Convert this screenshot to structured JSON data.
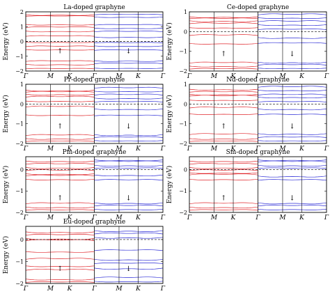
{
  "figure": {
    "ylabel": "Energy (eV)",
    "colors": {
      "spin_up": "#e0252a",
      "spin_down": "#2a2ad6",
      "frame": "#000000",
      "fermi": "#000000"
    },
    "panel_order": [
      "La",
      "Ce",
      "Pr",
      "Nd",
      "Pm",
      "Sm",
      "Eu"
    ]
  },
  "chart_data": [
    {
      "type": "line",
      "title": "La-doped graphyne",
      "ylabel": "Energy (eV)",
      "xticks": [
        "Γ",
        "M",
        "K",
        "Γ"
      ],
      "yticks": [
        "−2",
        "−1",
        "0",
        "1",
        "2"
      ],
      "ylim": [
        -2,
        2
      ],
      "fermi_level": 0,
      "grid": false,
      "series": [
        {
          "spin": "up",
          "color": "#e0252a",
          "arrow": "↑",
          "bands_at_gamma": [
            -1.85,
            -1.55,
            -1.35,
            -0.55,
            -0.35,
            -0.05,
            0.35,
            0.7,
            0.95,
            1.15,
            1.7,
            1.8
          ]
        },
        {
          "spin": "down",
          "color": "#2a2ad6",
          "arrow": "↓",
          "bands_at_gamma": [
            -1.8,
            -1.5,
            -1.3,
            -0.6,
            -0.3,
            -0.1,
            0.3,
            0.65,
            0.9,
            1.1,
            1.65,
            1.8
          ]
        }
      ]
    },
    {
      "type": "line",
      "title": "Ce-doped graphyne",
      "ylabel": "Energy (eV)",
      "xticks": [
        "Γ",
        "M",
        "K",
        "Γ"
      ],
      "yticks": [
        "−2",
        "−1",
        "0",
        "1"
      ],
      "ylim": [
        -2,
        1
      ],
      "fermi_level": 0,
      "grid": false,
      "series": [
        {
          "spin": "up",
          "color": "#e0252a",
          "arrow": "↑",
          "bands_at_gamma": [
            -1.9,
            -1.75,
            -1.6,
            -0.6,
            -0.2,
            0.2,
            0.4,
            0.55,
            0.65,
            0.75
          ]
        },
        {
          "spin": "down",
          "color": "#2a2ad6",
          "arrow": "↓",
          "bands_at_gamma": [
            -1.85,
            -1.7,
            -1.55,
            -0.6,
            -0.3,
            0.1,
            0.35,
            0.5,
            0.7,
            0.85
          ]
        }
      ]
    },
    {
      "type": "line",
      "title": "Pr-doped graphyne",
      "ylabel": "Energy (eV)",
      "xticks": [
        "Γ",
        "M",
        "K",
        "Γ"
      ],
      "yticks": [
        "−2",
        "−1",
        "0",
        "1"
      ],
      "ylim": [
        -2,
        1
      ],
      "fermi_level": 0,
      "grid": false,
      "series": [
        {
          "spin": "up",
          "color": "#e0252a",
          "arrow": "↑",
          "bands_at_gamma": [
            -1.9,
            -1.75,
            -1.6,
            -0.55,
            -0.15,
            0.15,
            0.35,
            0.5,
            0.6,
            0.7
          ]
        },
        {
          "spin": "down",
          "color": "#2a2ad6",
          "arrow": "↓",
          "bands_at_gamma": [
            -1.85,
            -1.7,
            -1.55,
            -0.6,
            -0.25,
            0.1,
            0.3,
            0.45,
            0.65,
            0.8
          ]
        }
      ]
    },
    {
      "type": "line",
      "title": "Nd-doped graphyne",
      "ylabel": "Energy (eV)",
      "xticks": [
        "Γ",
        "M",
        "K",
        "Γ"
      ],
      "yticks": [
        "−2",
        "−1",
        "0",
        "1"
      ],
      "ylim": [
        -2,
        1
      ],
      "fermi_level": 0,
      "grid": false,
      "series": [
        {
          "spin": "up",
          "color": "#e0252a",
          "arrow": "↑",
          "bands_at_gamma": [
            -1.9,
            -1.75,
            -1.55,
            -0.5,
            -0.2,
            0.2,
            0.4,
            0.5,
            0.6,
            0.75
          ]
        },
        {
          "spin": "down",
          "color": "#2a2ad6",
          "arrow": "↓",
          "bands_at_gamma": [
            -1.85,
            -1.7,
            -1.5,
            -0.55,
            -0.25,
            0.1,
            0.35,
            0.45,
            0.7,
            0.85
          ]
        }
      ]
    },
    {
      "type": "line",
      "title": "Pm-doped graphyne",
      "ylabel": "Energy (eV)",
      "xticks": [
        "Γ",
        "M",
        "K",
        "Γ"
      ],
      "yticks": [
        "−2",
        "−1",
        "0"
      ],
      "ylim": [
        -2,
        0.6
      ],
      "fermi_level": 0,
      "grid": false,
      "series": [
        {
          "spin": "up",
          "color": "#e0252a",
          "arrow": "↑",
          "bands_at_gamma": [
            -1.9,
            -1.75,
            -1.6,
            -0.45,
            -0.3,
            -0.2,
            -0.05,
            0.1,
            0.25,
            0.4
          ]
        },
        {
          "spin": "down",
          "color": "#2a2ad6",
          "arrow": "↓",
          "bands_at_gamma": [
            -1.85,
            -1.7,
            -1.55,
            -0.5,
            -0.25,
            0.05,
            0.2,
            0.35,
            0.45
          ]
        }
      ]
    },
    {
      "type": "line",
      "title": "Sm-doped graphyne",
      "ylabel": "Energy (eV)",
      "xticks": [
        "Γ",
        "M",
        "K",
        "Γ"
      ],
      "yticks": [
        "−2",
        "−1",
        "0"
      ],
      "ylim": [
        -2,
        0.6
      ],
      "fermi_level": 0,
      "grid": false,
      "series": [
        {
          "spin": "up",
          "color": "#e0252a",
          "arrow": "↑",
          "bands_at_gamma": [
            -1.9,
            -1.75,
            -1.6,
            -0.45,
            -0.25,
            -0.15,
            -0.05,
            0.1,
            0.25,
            0.4
          ]
        },
        {
          "spin": "down",
          "color": "#2a2ad6",
          "arrow": "↓",
          "bands_at_gamma": [
            -1.85,
            -1.7,
            -1.55,
            -0.5,
            -0.3,
            0.05,
            0.2,
            0.35,
            0.45
          ]
        }
      ]
    },
    {
      "type": "line",
      "title": "Eu-doped graphyne",
      "ylabel": "Energy (eV)",
      "xticks": [
        "Γ",
        "M",
        "K",
        "Γ"
      ],
      "yticks": [
        "−2",
        "−1",
        "0"
      ],
      "ylim": [
        -2,
        0.6
      ],
      "fermi_level": 0,
      "grid": false,
      "series": [
        {
          "spin": "up",
          "color": "#e0252a",
          "arrow": "↑",
          "bands_at_gamma": [
            -1.95,
            -1.8,
            -1.4,
            -1.2,
            -0.9,
            -0.55,
            -0.05,
            0.05,
            0.2,
            0.35
          ]
        },
        {
          "spin": "down",
          "color": "#2a2ad6",
          "arrow": "↓",
          "bands_at_gamma": [
            -1.9,
            -1.75,
            -1.3,
            -1.1,
            -0.9,
            -0.5,
            0.1,
            0.25,
            0.4
          ]
        }
      ]
    }
  ]
}
